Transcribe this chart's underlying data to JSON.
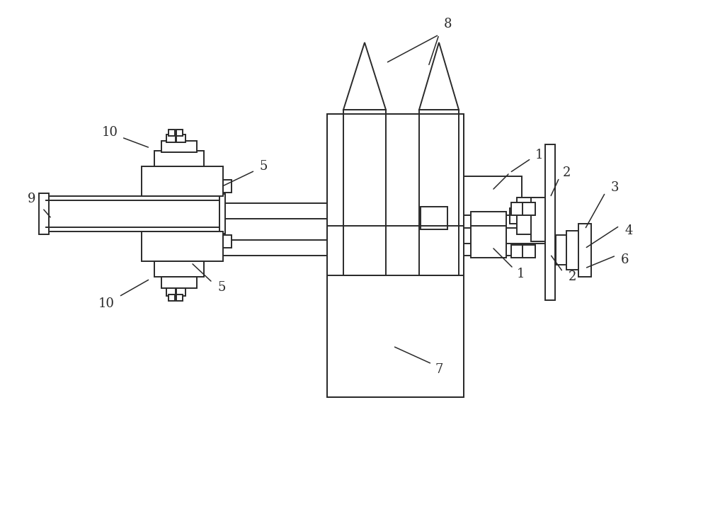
{
  "bg_color": "#ffffff",
  "line_color": "#2a2a2a",
  "lw": 1.4,
  "fig_w": 10.0,
  "fig_h": 7.19,
  "dpi": 100
}
